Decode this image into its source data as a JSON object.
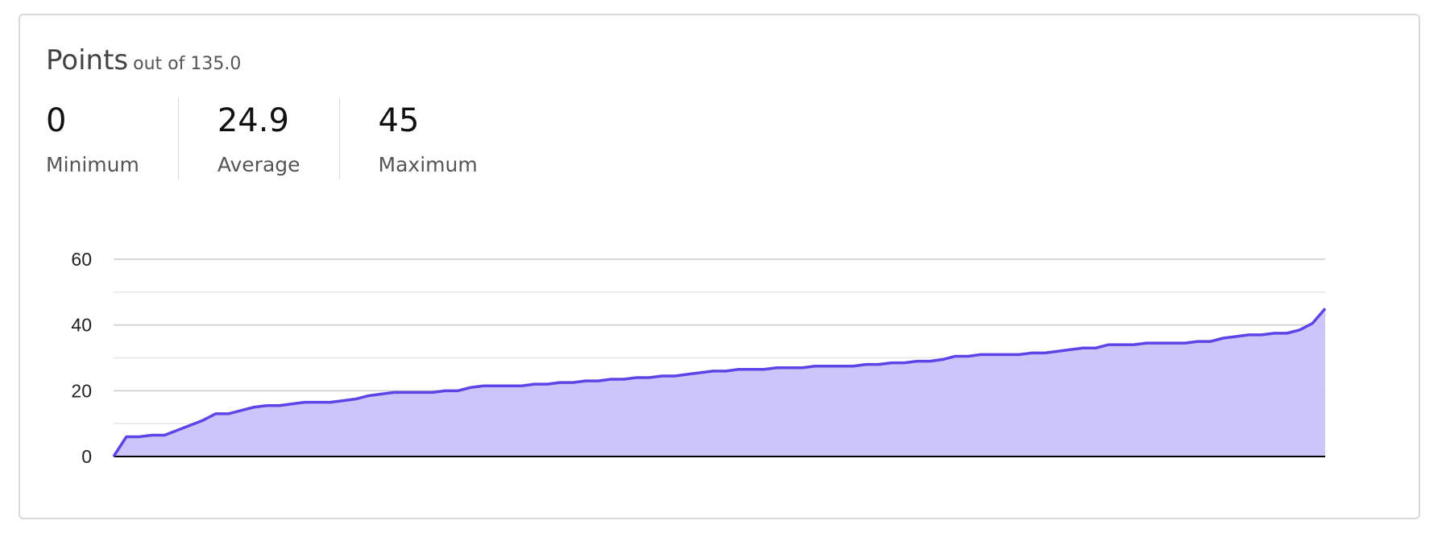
{
  "header": {
    "title": "Points",
    "subtitle": "out of 135.0"
  },
  "stats": [
    {
      "value": "0",
      "label": "Minimum"
    },
    {
      "value": "24.9",
      "label": "Average"
    },
    {
      "value": "45",
      "label": "Maximum"
    }
  ],
  "colors": {
    "line": "#5b45e6",
    "fill": "#c9c2fa",
    "grid": "#cccccc",
    "baseline": "#000000"
  },
  "chart_data": {
    "type": "area",
    "title": "",
    "xlabel": "",
    "ylabel": "",
    "ylim": [
      0,
      60
    ],
    "yticks": [
      0,
      20,
      40,
      60
    ],
    "grid": true,
    "series": [
      {
        "values": [
          0,
          6,
          6,
          6.5,
          6.5,
          8,
          9.5,
          11,
          13,
          13,
          14,
          15,
          15.5,
          15.5,
          16,
          16.5,
          16.5,
          16.5,
          17,
          17.5,
          18.5,
          19,
          19.5,
          19.5,
          19.5,
          19.5,
          20,
          20,
          21,
          21.5,
          21.5,
          21.5,
          21.5,
          22,
          22,
          22.5,
          22.5,
          23,
          23,
          23.5,
          23.5,
          24,
          24,
          24.5,
          24.5,
          25,
          25.5,
          26,
          26,
          26.5,
          26.5,
          26.5,
          27,
          27,
          27,
          27.5,
          27.5,
          27.5,
          27.5,
          28,
          28,
          28.5,
          28.5,
          29,
          29,
          29.5,
          30.5,
          30.5,
          31,
          31,
          31,
          31,
          31.5,
          31.5,
          32,
          32.5,
          33,
          33,
          34,
          34,
          34,
          34.5,
          34.5,
          34.5,
          34.5,
          35,
          35,
          36,
          36.5,
          37,
          37,
          37.5,
          37.5,
          38.5,
          40.5,
          45
        ]
      }
    ]
  }
}
